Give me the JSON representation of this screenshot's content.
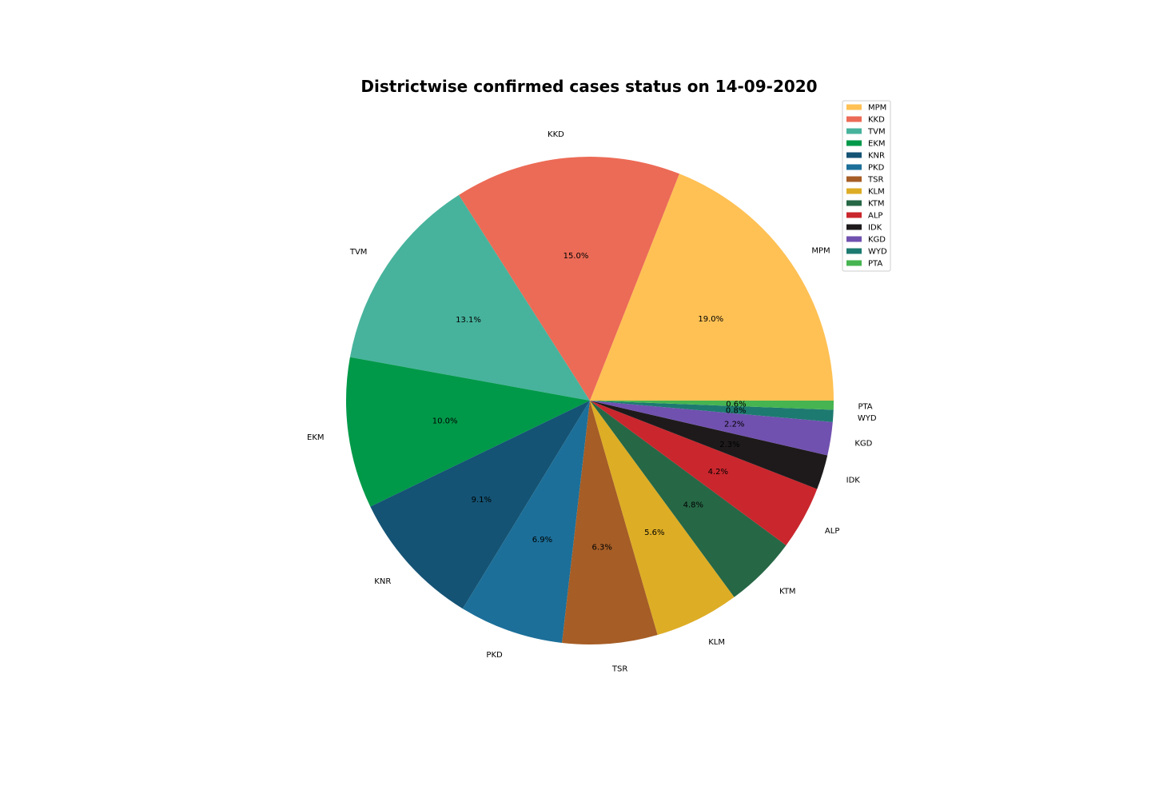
{
  "chart_data": {
    "type": "pie",
    "title": "Districtwise confirmed cases status on 14-09-2020",
    "legend_position": "top-right",
    "slices": [
      {
        "label": "MPM",
        "percent": 19.0,
        "pct_text": "19.0%",
        "color": "#FFC154"
      },
      {
        "label": "KKD",
        "percent": 15.0,
        "pct_text": "15.0%",
        "color": "#EC6B56"
      },
      {
        "label": "TVM",
        "percent": 13.1,
        "pct_text": "13.1%",
        "color": "#47B39C"
      },
      {
        "label": "EKM",
        "percent": 10.0,
        "pct_text": "10.0%",
        "color": "#009949"
      },
      {
        "label": "KNR",
        "percent": 9.1,
        "pct_text": "9.1%",
        "color": "#145374"
      },
      {
        "label": "PKD",
        "percent": 6.9,
        "pct_text": "6.9%",
        "color": "#1B6F99"
      },
      {
        "label": "TSR",
        "percent": 6.3,
        "pct_text": "6.3%",
        "color": "#A65E26"
      },
      {
        "label": "KLM",
        "percent": 5.6,
        "pct_text": "5.6%",
        "color": "#DDAD26"
      },
      {
        "label": "KTM",
        "percent": 4.8,
        "pct_text": "4.8%",
        "color": "#266746"
      },
      {
        "label": "ALP",
        "percent": 4.2,
        "pct_text": "4.2%",
        "color": "#C9262E"
      },
      {
        "label": "IDK",
        "percent": 2.3,
        "pct_text": "2.3%",
        "color": "#1E1A1B"
      },
      {
        "label": "KGD",
        "percent": 2.2,
        "pct_text": "2.2%",
        "color": "#7151B0"
      },
      {
        "label": "WYD",
        "percent": 0.8,
        "pct_text": "0.8%",
        "color": "#1C7A70"
      },
      {
        "label": "PTA",
        "percent": 0.6,
        "pct_text": "0.6%",
        "color": "#46B450"
      }
    ]
  }
}
